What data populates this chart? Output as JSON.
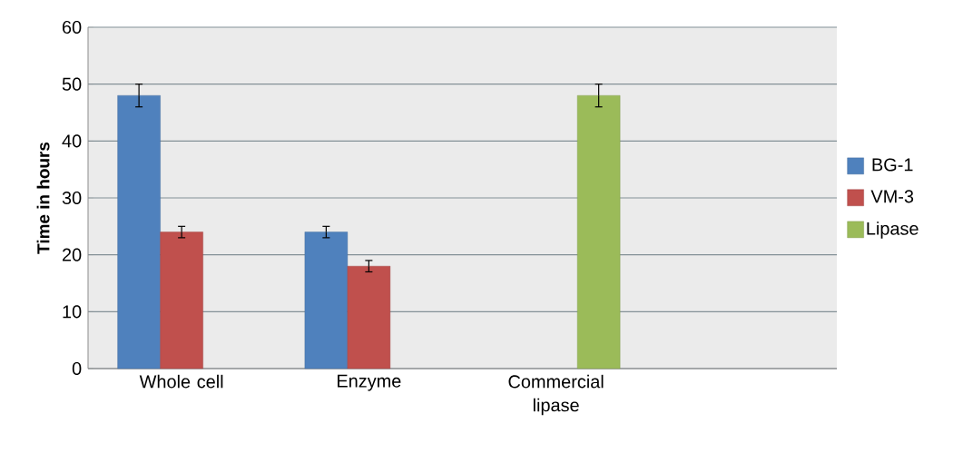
{
  "chart_data": {
    "type": "bar",
    "ylabel": "Time in hours",
    "categories": [
      "Whole cell",
      "Enzyme",
      "Commercial lipase",
      null
    ],
    "series": [
      {
        "name": "BG-1",
        "color": "#4f81bd",
        "values": [
          48,
          24,
          null,
          null
        ],
        "errors": [
          2,
          1,
          null,
          null
        ]
      },
      {
        "name": "VM-3",
        "color": "#c0504d",
        "values": [
          24,
          18,
          null,
          null
        ],
        "errors": [
          1,
          1,
          null,
          null
        ]
      },
      {
        "name": "Lipase",
        "color": "#9bbb59",
        "values": [
          null,
          null,
          48,
          null
        ],
        "errors": [
          null,
          null,
          2,
          null
        ]
      }
    ],
    "ylim": [
      0,
      60
    ],
    "yticks": [
      0,
      10,
      20,
      30,
      40,
      50,
      60
    ],
    "grid": "y",
    "legend": "right"
  }
}
